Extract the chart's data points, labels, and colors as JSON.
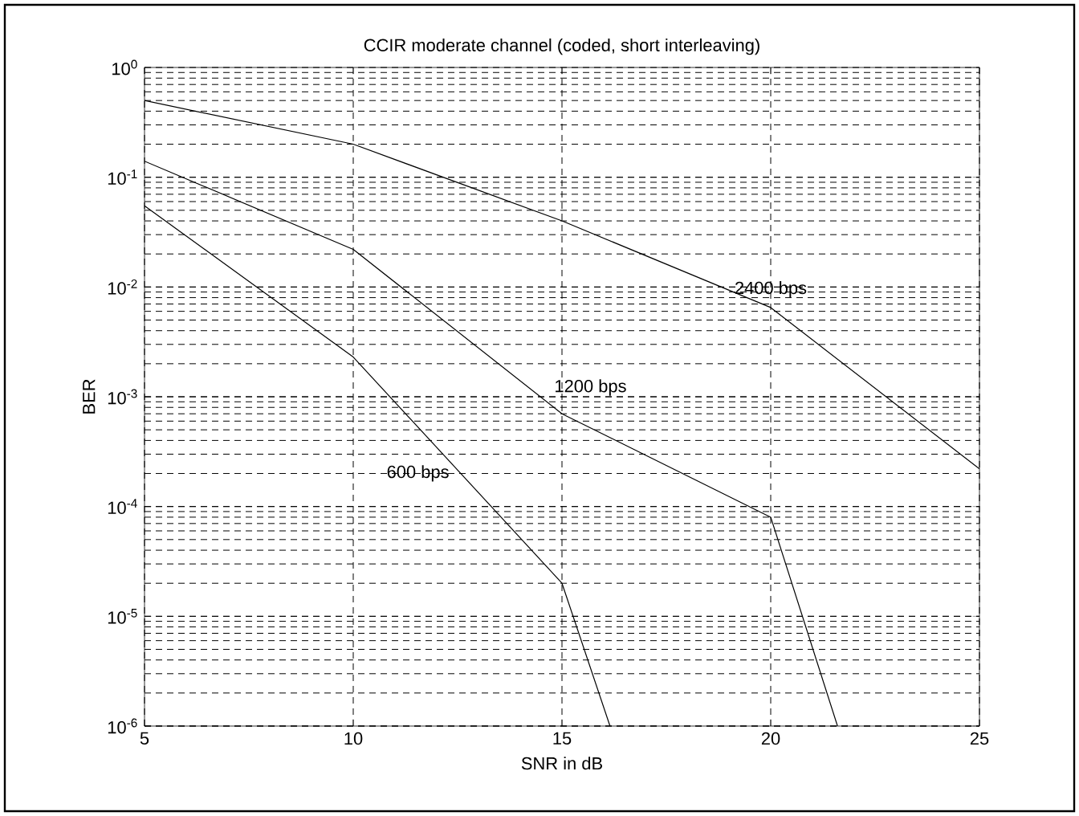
{
  "chart_data": {
    "type": "line",
    "title": "CCIR moderate channel (coded, short interleaving)",
    "xlabel": "SNR in dB",
    "ylabel": "BER",
    "log": "y",
    "grid": true,
    "marker": "none",
    "line_style": "solid",
    "legend": false,
    "xlim": [
      5,
      25
    ],
    "xticks": [
      5,
      10,
      15,
      20,
      25
    ],
    "ylim": [
      1e-06,
      1
    ],
    "yticks": [
      {
        "value": 1e-06,
        "label": "10$^{-6}$"
      },
      {
        "value": 1e-05,
        "label": "10$^{-5}$"
      },
      {
        "value": 0.0001,
        "label": "10$^{-4}$"
      },
      {
        "value": 0.001,
        "label": "10$^{-3}$"
      },
      {
        "value": 0.01,
        "label": "10$^{-2}$"
      },
      {
        "value": 0.1,
        "label": "10$^{-1}$"
      },
      {
        "value": 1,
        "label": "10$^{0}$"
      }
    ],
    "series": [
      {
        "name": "2400 bps",
        "color": "#000000",
        "x": [
          5,
          10,
          15,
          20,
          25
        ],
        "values": [
          0.5,
          0.2,
          0.04,
          0.0065,
          0.00022
        ]
      },
      {
        "name": "1200 bps",
        "color": "#000000",
        "x": [
          5,
          10,
          15,
          20,
          21.6
        ],
        "values": [
          0.14,
          0.022,
          0.0007,
          8e-05,
          1e-06
        ]
      },
      {
        "name": "600 bps",
        "color": "#000000",
        "x": [
          5,
          10,
          15,
          16.15
        ],
        "values": [
          0.055,
          0.0023,
          2e-05,
          1e-06
        ]
      }
    ]
  }
}
